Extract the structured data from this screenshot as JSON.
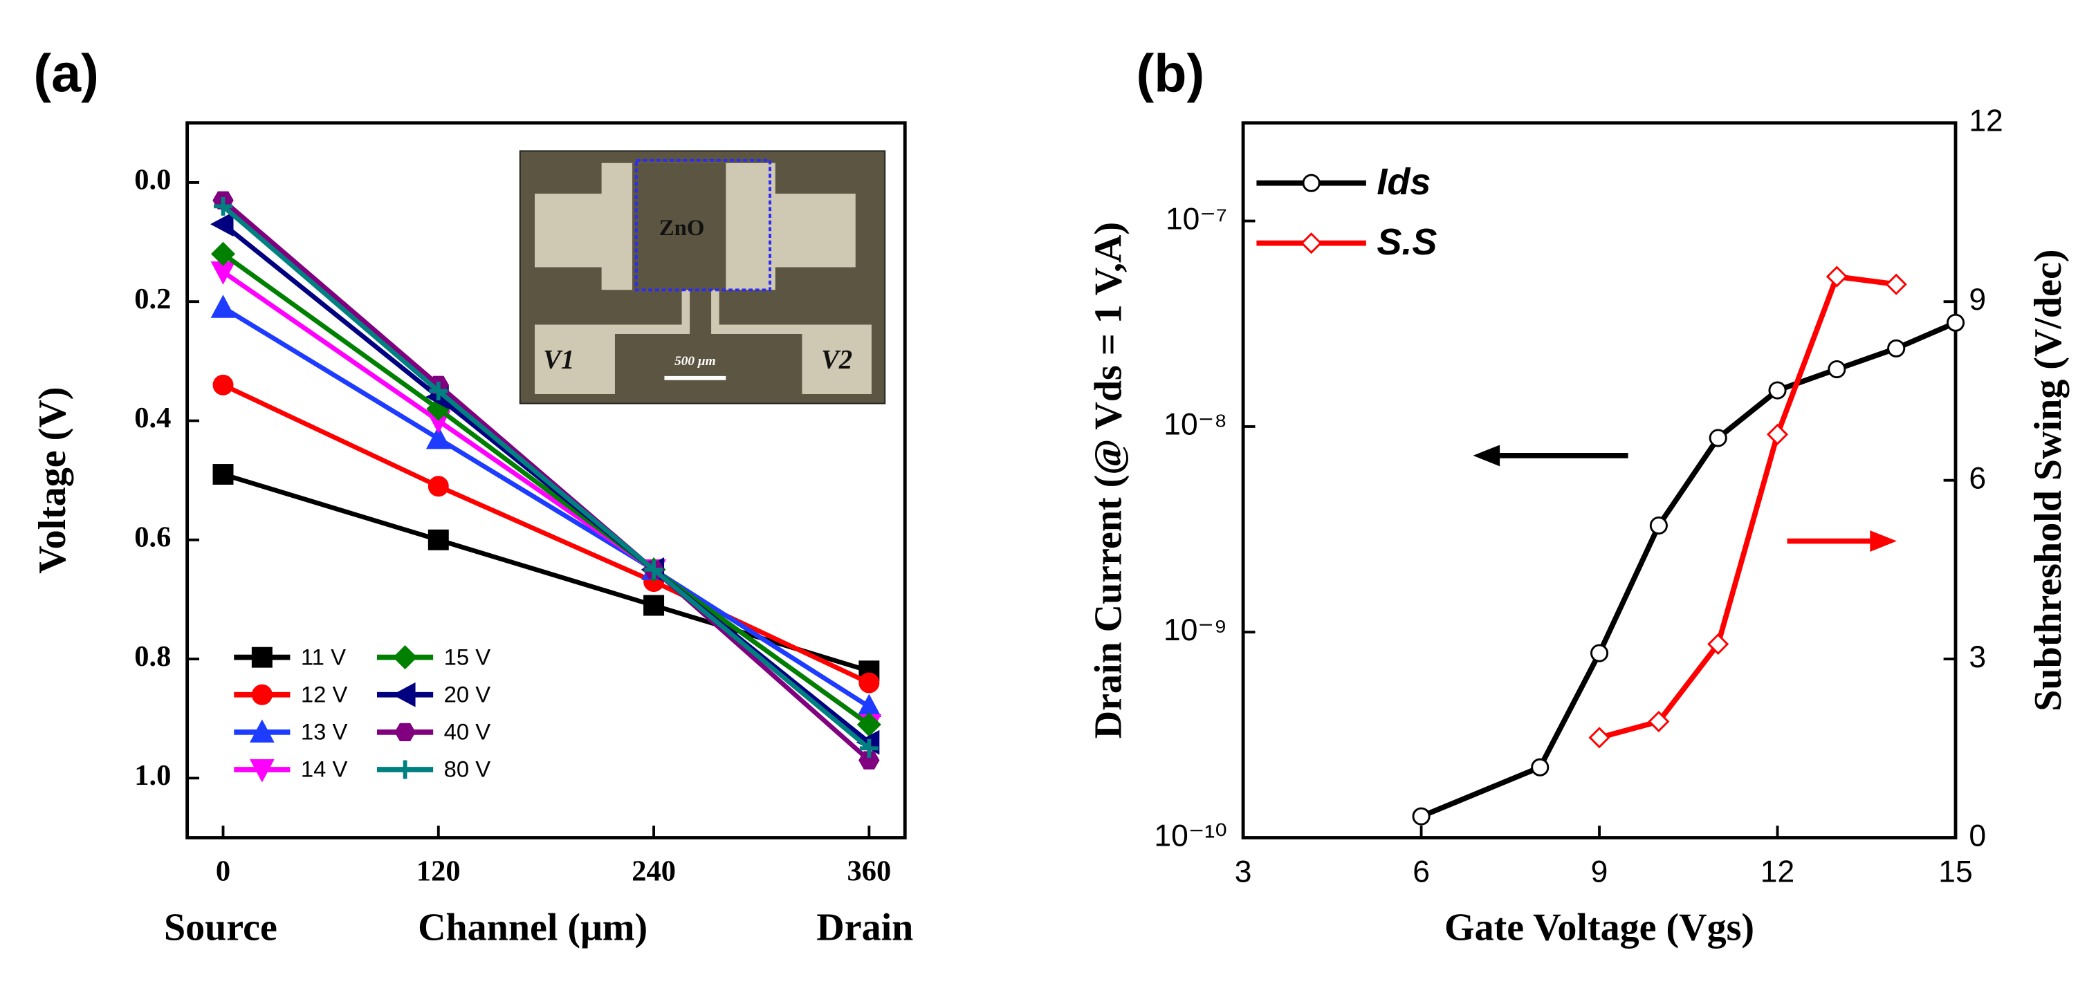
{
  "chart_data": [
    {
      "type": "line",
      "title": "(a)",
      "x_label": "Channel (μm)",
      "y_label": "Voltage (V)",
      "x_end_labels": [
        "Source",
        "Drain"
      ],
      "inset_labels": [
        "ZnO",
        "V1",
        "V2",
        "500 μm"
      ],
      "x": [
        0,
        120,
        240,
        360
      ],
      "xlim": [
        -20,
        380
      ],
      "xticks": [
        0,
        120,
        240,
        360
      ],
      "ylim": [
        -0.1,
        1.1
      ],
      "y_inverted": true,
      "yticks": [
        {
          "value": 0,
          "label": "0.0"
        },
        0.2,
        0.4,
        0.6,
        0.8,
        {
          "value": 1,
          "label": "1.0"
        }
      ],
      "legend": "lower left",
      "series": [
        {
          "name": "11 V",
          "color": "#000000",
          "marker": "square",
          "values": [
            0.49,
            0.6,
            0.71,
            0.82
          ]
        },
        {
          "name": "12 V",
          "color": "#ff0000",
          "marker": "circle",
          "values": [
            0.34,
            0.51,
            0.67,
            0.84
          ]
        },
        {
          "name": "13 V",
          "color": "#1e3cff",
          "marker": "triangle-up",
          "values": [
            0.21,
            0.43,
            0.65,
            0.88
          ]
        },
        {
          "name": "14 V",
          "color": "#ff00ff",
          "marker": "triangle-down",
          "values": [
            0.15,
            0.4,
            0.65,
            0.91
          ]
        },
        {
          "name": "15 V",
          "color": "#008000",
          "marker": "diamond",
          "values": [
            0.12,
            0.38,
            0.65,
            0.91
          ]
        },
        {
          "name": "20 V",
          "color": "#000080",
          "marker": "triangle-left",
          "values": [
            0.07,
            0.36,
            0.65,
            0.94
          ]
        },
        {
          "name": "40 V",
          "color": "#800080",
          "marker": "hexagon",
          "values": [
            0.03,
            0.34,
            0.65,
            0.97
          ]
        },
        {
          "name": "80 V",
          "color": "#008080",
          "marker": "plus",
          "values": [
            0.04,
            0.35,
            0.65,
            0.95
          ]
        }
      ]
    },
    {
      "type": "line",
      "title": "(b)",
      "x_label": "Gate Voltage (Vgs)",
      "y_label": "Drain Current (@ Vds = 1 V,A)",
      "y2_label": "Subthreshold Swing (V/dec)",
      "xlim": [
        3,
        15
      ],
      "xticks": [
        3,
        6,
        9,
        12,
        15
      ],
      "ylim": [
        1e-10,
        3e-07
      ],
      "y_log": true,
      "yticks": [
        {
          "value": 1e-10,
          "label": "10⁻¹⁰"
        },
        {
          "value": 1e-09,
          "label": "10⁻⁹"
        },
        {
          "value": 1e-08,
          "label": "10⁻⁸"
        },
        {
          "value": 1e-07,
          "label": "10⁻⁷"
        }
      ],
      "y2lim": [
        0,
        12
      ],
      "y2ticks": [
        0,
        3,
        6,
        9,
        12
      ],
      "legend": "upper left",
      "series": [
        {
          "name": "Ids",
          "color": "#000000",
          "marker": "open-circle",
          "x": [
            6,
            8,
            9,
            10,
            11,
            12,
            13,
            14,
            15
          ],
          "values": [
            1.27e-10,
            2.2e-10,
            7.9e-10,
            3.3e-09,
            8.8e-09,
            1.5e-08,
            1.9e-08,
            2.4e-08,
            3.2e-08
          ]
        },
        {
          "name": "S.S",
          "color": "#ff0000",
          "marker": "open-diamond",
          "axis": "y2",
          "x": [
            9,
            10,
            11,
            12,
            13,
            14
          ],
          "values": [
            1.68,
            1.95,
            3.25,
            6.77,
            9.42,
            9.29
          ]
        }
      ]
    }
  ]
}
